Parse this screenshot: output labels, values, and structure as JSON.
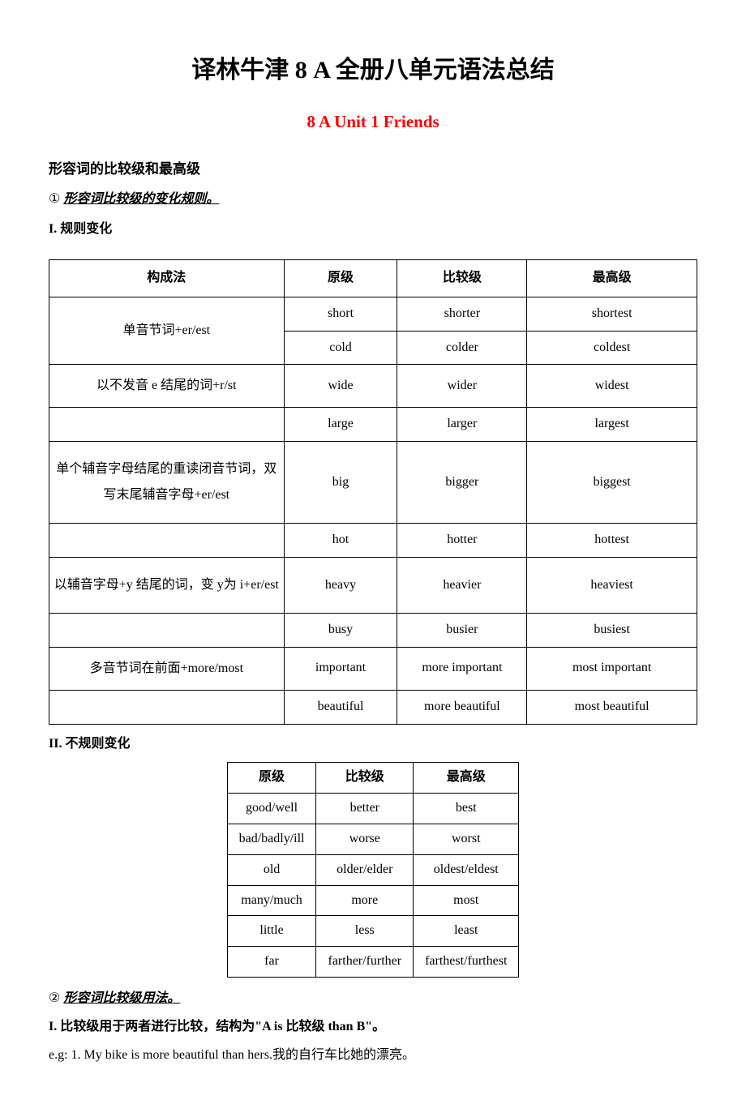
{
  "title": "译林牛津 8 A  全册八单元语法总结",
  "subtitle": "8 A Unit 1 Friends",
  "section1": "形容词的比较级和最高级",
  "point1_prefix": "① ",
  "point1_text": "形容词比较级的变化规则。",
  "roman1": "I.  规则变化",
  "table1": {
    "headers": [
      "构成法",
      "原级",
      "比较级",
      "最高级"
    ],
    "groups": [
      {
        "rule": "单音节词+er/est",
        "rows": [
          [
            "short",
            "shorter",
            "shortest"
          ],
          [
            "cold",
            "colder",
            "coldest"
          ]
        ],
        "tall": false
      },
      {
        "rule": "以不发音 e 结尾的词+r/st",
        "rows": [
          [
            "wide",
            "wider",
            "widest"
          ],
          [
            "large",
            "larger",
            "largest"
          ]
        ],
        "tall": false,
        "singleRule": true
      },
      {
        "rule": "单个辅音字母结尾的重读闭音节词，双写末尾辅音字母+er/est",
        "rows": [
          [
            "big",
            "bigger",
            "biggest"
          ],
          [
            "hot",
            "hotter",
            "hottest"
          ]
        ],
        "tall": true,
        "singleRule": true
      },
      {
        "rule": "以辅音字母+y 结尾的词，变 y为 i+er/est",
        "rows": [
          [
            "heavy",
            "heavier",
            "heaviest"
          ],
          [
            "busy",
            "busier",
            "busiest"
          ]
        ],
        "tall": true,
        "singleRule": true
      },
      {
        "rule": "多音节词在前面+more/most",
        "rows": [
          [
            "important",
            "more important",
            "most important"
          ],
          [
            "beautiful",
            "more beautiful",
            "most beautiful"
          ]
        ],
        "tall": false,
        "singleRule": true
      }
    ]
  },
  "roman2": "II.  不规则变化",
  "table2": {
    "headers": [
      "原级",
      "比较级",
      "最高级"
    ],
    "rows": [
      [
        "good/well",
        "better",
        "best"
      ],
      [
        "bad/badly/ill",
        "worse",
        "worst"
      ],
      [
        "old",
        "older/elder",
        "oldest/eldest"
      ],
      [
        "many/much",
        "more",
        "most"
      ],
      [
        "little",
        "less",
        "least"
      ],
      [
        "far",
        "farther/further",
        "farthest/furthest"
      ]
    ]
  },
  "point2_prefix": "② ",
  "point2_text": "形容词比较级用法。",
  "usage1": "I.  比较级用于两者进行比较，结构为\"A is  比较级  than B\"。",
  "example1": "e.g: 1. My bike is more beautiful than hers.我的自行车比她的漂亮。",
  "colors": {
    "text": "#000000",
    "accent": "#ff0000",
    "background": "#ffffff",
    "border": "#000000"
  },
  "typography": {
    "title_fontsize": 30,
    "subtitle_fontsize": 21,
    "body_fontsize": 16,
    "font_family_cn": "SimSun",
    "font_family_en": "Times New Roman"
  }
}
